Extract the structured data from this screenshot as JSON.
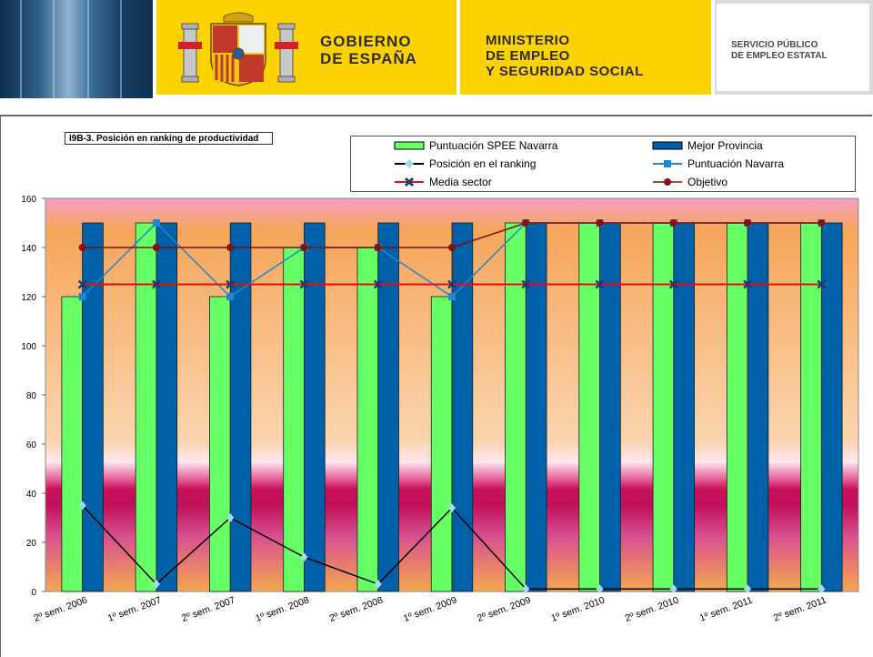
{
  "header": {
    "gobierno_line1": "GOBIERNO",
    "gobierno_line2": "DE ESPAÑA",
    "ministerio_line1": "MINISTERIO",
    "ministerio_line2": "DE EMPLEO",
    "ministerio_line3": "Y SEGURIDAD SOCIAL",
    "spee_line1": "SERVICIO PÚBLICO",
    "spee_line2": "DE EMPLEO ESTATAL"
  },
  "chart_data": {
    "type": "bar",
    "title": "I9B-3. Posición en ranking de productividad",
    "categories": [
      "2º sem. 2006",
      "1º sem. 2007",
      "2º sem. 2007",
      "1º sem. 2008",
      "2º sem. 2008",
      "1º sem. 2009",
      "2º sem. 2009",
      "1º sem. 2010",
      "2º sem. 2010",
      "1º sem. 2011",
      "2º sem. 2011"
    ],
    "ylim": [
      0,
      160
    ],
    "yticks": [
      0,
      20,
      40,
      60,
      80,
      100,
      120,
      140,
      160
    ],
    "legend_position": "top-right",
    "series": [
      {
        "name": "Puntuación SPEE Navarra",
        "kind": "bar",
        "color": "#66ff66",
        "values": [
          120,
          150,
          120,
          140,
          140,
          120,
          150,
          150,
          150,
          150,
          150
        ]
      },
      {
        "name": "Mejor Provincia",
        "kind": "bar",
        "color": "#0060a8",
        "values": [
          150,
          150,
          150,
          150,
          150,
          150,
          150,
          150,
          150,
          150,
          150
        ]
      },
      {
        "name": "Posición en el ranking",
        "kind": "line",
        "color": "#000000",
        "marker_color": "#a6d8ee",
        "marker": "diamond",
        "values": [
          35,
          3,
          30,
          14,
          3,
          34,
          1,
          1,
          1,
          1,
          1
        ]
      },
      {
        "name": "Puntuación Navarra",
        "kind": "line",
        "color": "#1e88d0",
        "marker_color": "#1e88d0",
        "marker": "square",
        "values": [
          120,
          150,
          120,
          140,
          140,
          120,
          150,
          150,
          150,
          150,
          150
        ]
      },
      {
        "name": "Media sector",
        "kind": "line",
        "color": "#e01010",
        "marker_color": "#1a3c78",
        "marker": "x",
        "values": [
          125,
          125,
          125,
          125,
          125,
          125,
          125,
          125,
          125,
          125,
          125
        ]
      },
      {
        "name": "Objetivo",
        "kind": "line",
        "color": "#7a1010",
        "marker_color": "#8b0d0d",
        "marker": "circle",
        "values": [
          140,
          140,
          140,
          140,
          140,
          140,
          150,
          150,
          150,
          150,
          150
        ]
      }
    ]
  }
}
